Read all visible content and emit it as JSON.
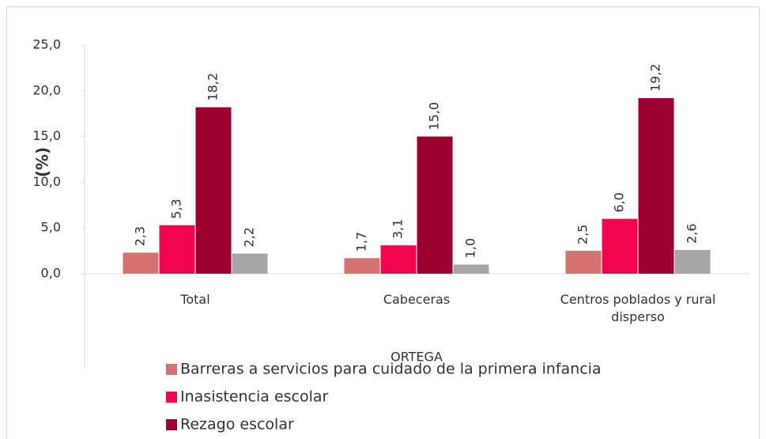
{
  "chart_data": {
    "type": "bar",
    "x_label": "ORTEGA",
    "y_label": "(%)",
    "categories": [
      "Total",
      "Cabeceras",
      "Centros poblados y rural disperso"
    ],
    "series": [
      {
        "name": "Barreras a servicios para cuidado de la primera infancia",
        "color": "#d47272",
        "values": [
          2.3,
          1.7,
          2.5
        ],
        "value_labels": [
          "2,3",
          "1,7",
          "2,5"
        ]
      },
      {
        "name": "Inasistencia escolar",
        "color": "#f0054e",
        "values": [
          5.3,
          3.1,
          6.0
        ],
        "value_labels": [
          "5,3",
          "3,1",
          "6,0"
        ]
      },
      {
        "name": "Rezago escolar",
        "color": "#9b0033",
        "values": [
          18.2,
          15.0,
          19.2
        ],
        "value_labels": [
          "18,2",
          "15,0",
          "19,2"
        ]
      },
      {
        "color": "#a6a6a6",
        "values": [
          2.2,
          1.0,
          2.6
        ],
        "value_labels": [
          "2,2",
          "1,0",
          "2,6"
        ]
      }
    ],
    "ylim": [
      0,
      25
    ],
    "yticks": [
      {
        "value": 0,
        "label": "0,0"
      },
      {
        "value": 5,
        "label": "5,0"
      },
      {
        "value": 10,
        "label": "10,0"
      },
      {
        "value": 15,
        "label": "15,0"
      },
      {
        "value": 20,
        "label": "20,0"
      },
      {
        "value": 25,
        "label": "25,0"
      }
    ],
    "grid": false
  }
}
